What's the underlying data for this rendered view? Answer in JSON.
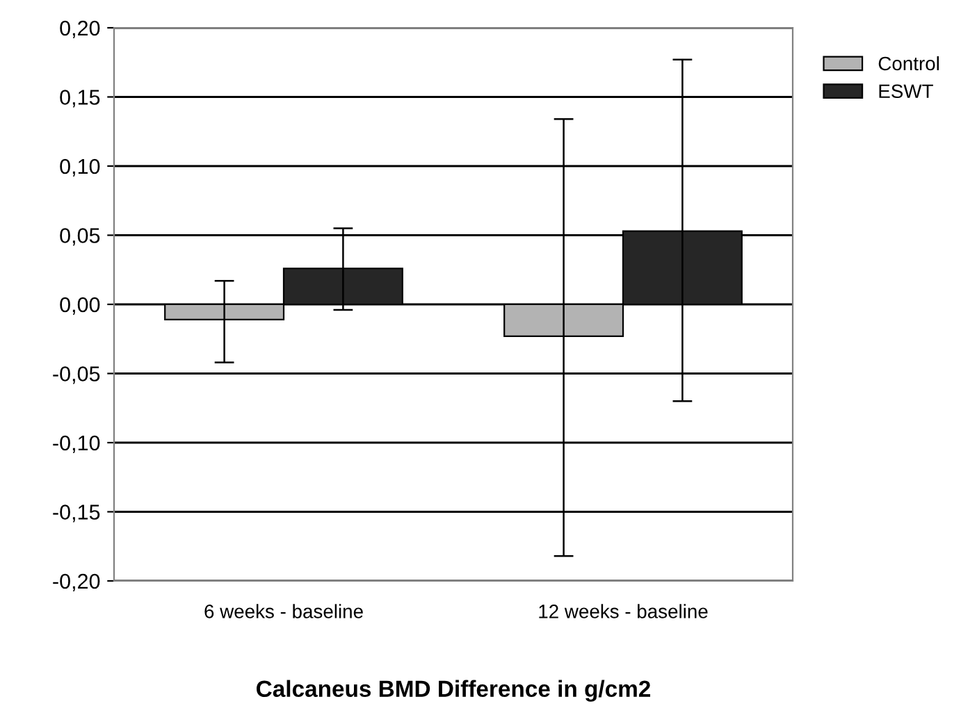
{
  "chart_data": {
    "type": "bar",
    "xlabel": "Calcaneus BMD Difference in g/cm2",
    "categories": [
      "6 weeks - baseline",
      "12 weeks - baseline"
    ],
    "series": [
      {
        "name": "Control",
        "color": "#b3b3b3",
        "values": [
          -0.011,
          -0.023
        ],
        "errors": [
          [
            -0.042,
            0.017
          ],
          [
            -0.182,
            0.134
          ]
        ]
      },
      {
        "name": "ESWT",
        "color": "#262626",
        "values": [
          0.026,
          0.053
        ],
        "errors": [
          [
            -0.004,
            0.055
          ],
          [
            -0.07,
            0.177
          ]
        ]
      }
    ],
    "ylim": [
      -0.2,
      0.2
    ],
    "yticks": [
      {
        "value": -0.2,
        "label": "-0,20"
      },
      {
        "value": -0.15,
        "label": "-0,15"
      },
      {
        "value": -0.1,
        "label": "-0,10"
      },
      {
        "value": -0.05,
        "label": "-0,05"
      },
      {
        "value": 0,
        "label": "0,00"
      },
      {
        "value": 0.05,
        "label": "0,05"
      },
      {
        "value": 0.1,
        "label": "0,10"
      },
      {
        "value": 0.15,
        "label": "0,15"
      },
      {
        "value": 0.2,
        "label": "0,20"
      }
    ],
    "grid": "y",
    "legend": "top right"
  }
}
